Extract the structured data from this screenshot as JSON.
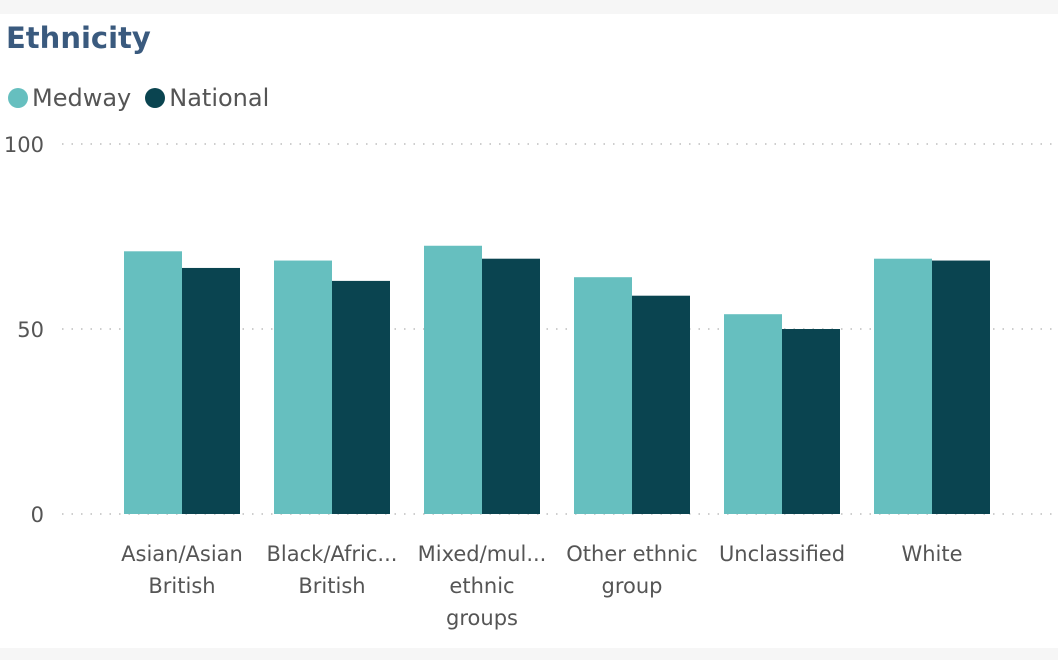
{
  "chart_data": {
    "type": "bar",
    "title": "Ethnicity",
    "categories": [
      [
        "Asian/Asian",
        "British"
      ],
      [
        "Black/Afric...",
        "British"
      ],
      [
        "Mixed/mul...",
        "ethnic",
        "groups"
      ],
      [
        "Other ethnic",
        "group"
      ],
      [
        "Unclassified"
      ],
      [
        "White"
      ]
    ],
    "series": [
      {
        "name": "Medway",
        "color": "#66bfbf",
        "values": [
          71,
          68.5,
          72.5,
          64,
          54,
          69
        ]
      },
      {
        "name": "National",
        "color": "#0a4450",
        "values": [
          66.5,
          63,
          69,
          59,
          50,
          68.5
        ]
      }
    ],
    "yticks": [
      "0",
      "50",
      "100"
    ],
    "ylim": [
      0,
      100
    ],
    "grid": true,
    "legend": "top-left",
    "xlabel": "",
    "ylabel": ""
  }
}
